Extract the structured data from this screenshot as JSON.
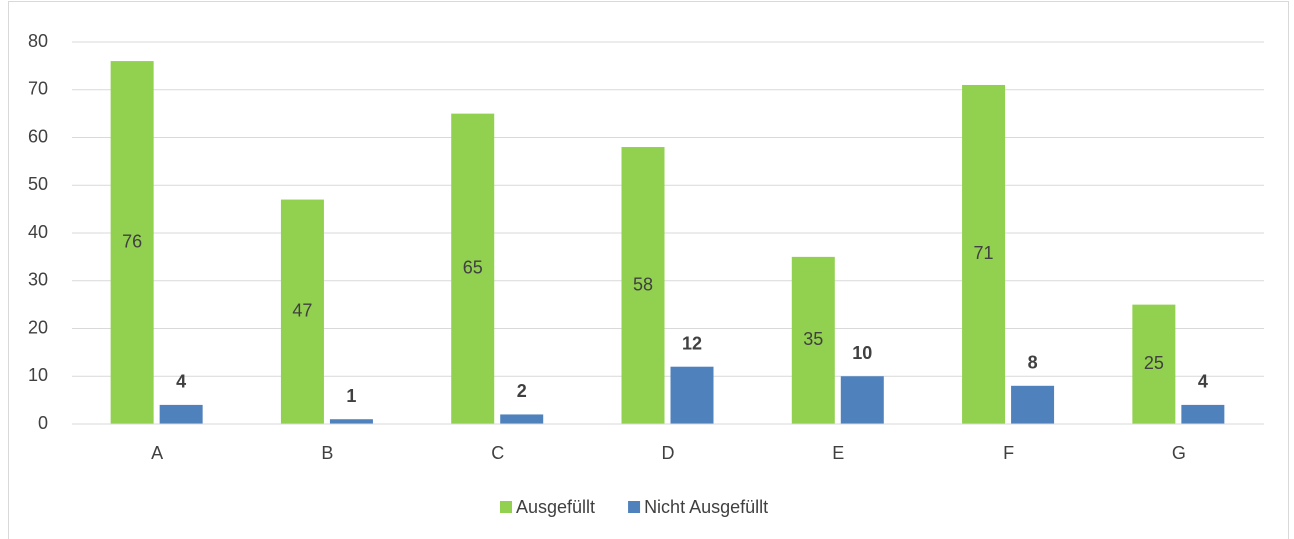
{
  "chart_data": {
    "type": "bar",
    "categories": [
      "A",
      "B",
      "C",
      "D",
      "E",
      "F",
      "G"
    ],
    "series": [
      {
        "name": "Ausgefüllt",
        "color": "#92d050",
        "values": [
          76,
          47,
          65,
          58,
          35,
          71,
          25
        ]
      },
      {
        "name": "Nicht Ausgefüllt",
        "color": "#4f81bd",
        "values": [
          4,
          1,
          2,
          12,
          10,
          8,
          4
        ]
      }
    ],
    "ylim": [
      0,
      80
    ],
    "yticks": [
      0,
      10,
      20,
      30,
      40,
      50,
      60,
      70,
      80
    ],
    "grid": true,
    "legend": "bottom"
  }
}
